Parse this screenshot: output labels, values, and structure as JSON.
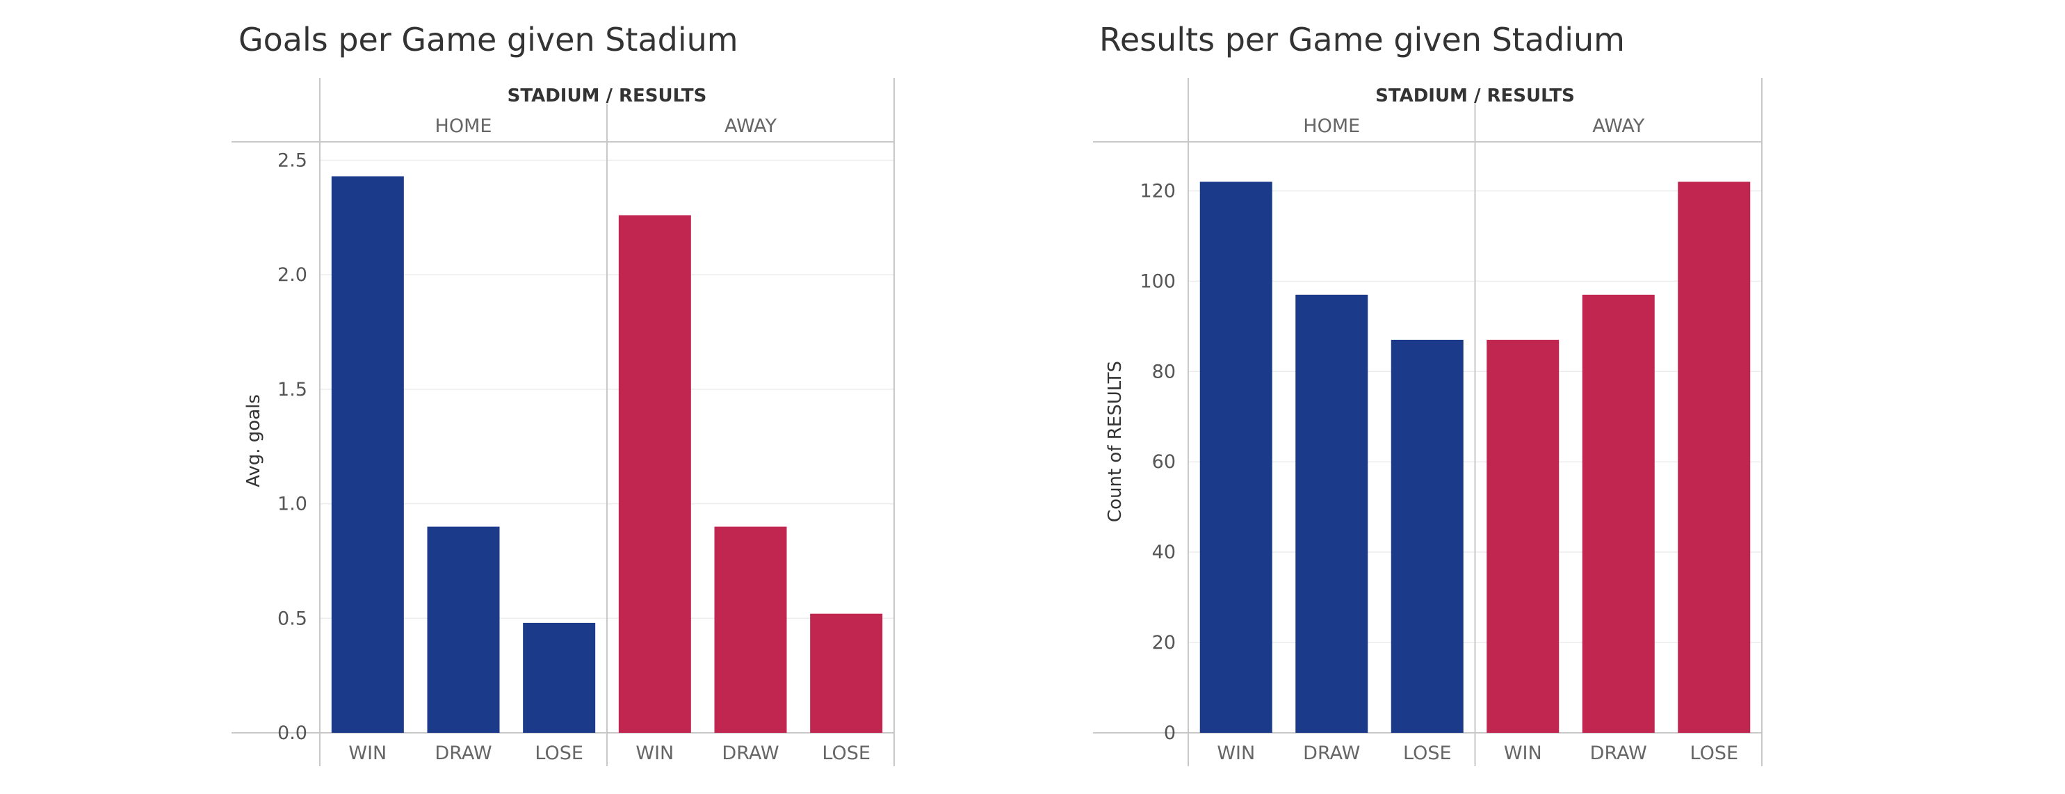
{
  "colors": {
    "home": "#1c3a8a",
    "away": "#c0264f",
    "axis": "#c8c8c8",
    "grid": "#ececec",
    "text": "#555555",
    "header": "#333333"
  },
  "chart_data": [
    {
      "type": "bar",
      "title": "Goals per Game given Stadium",
      "column_header": "STADIUM / RESULTS",
      "groups": [
        {
          "name": "HOME",
          "categories": [
            "WIN",
            "DRAW",
            "LOSE"
          ],
          "values": [
            2.43,
            0.9,
            0.48
          ]
        },
        {
          "name": "AWAY",
          "categories": [
            "WIN",
            "DRAW",
            "LOSE"
          ],
          "values": [
            2.26,
            0.9,
            0.52
          ]
        }
      ],
      "ylabel": "Avg. goals",
      "ylim": [
        0,
        2.55
      ],
      "yticks": [
        "0.0",
        "0.5",
        "1.0",
        "1.5",
        "2.0",
        "2.5"
      ],
      "ytick_values": [
        0,
        0.5,
        1.0,
        1.5,
        2.0,
        2.5
      ],
      "grid": true
    },
    {
      "type": "bar",
      "title": "Results per Game given Stadium",
      "column_header": "STADIUM / RESULTS",
      "groups": [
        {
          "name": "HOME",
          "categories": [
            "WIN",
            "DRAW",
            "LOSE"
          ],
          "values": [
            122,
            97,
            87
          ]
        },
        {
          "name": "AWAY",
          "categories": [
            "WIN",
            "DRAW",
            "LOSE"
          ],
          "values": [
            87,
            97,
            122
          ]
        }
      ],
      "ylabel": "Count of RESULTS",
      "ylim": [
        0,
        129
      ],
      "yticks": [
        "0",
        "20",
        "40",
        "60",
        "80",
        "100",
        "120"
      ],
      "ytick_values": [
        0,
        20,
        40,
        60,
        80,
        100,
        120
      ],
      "grid": true
    }
  ]
}
